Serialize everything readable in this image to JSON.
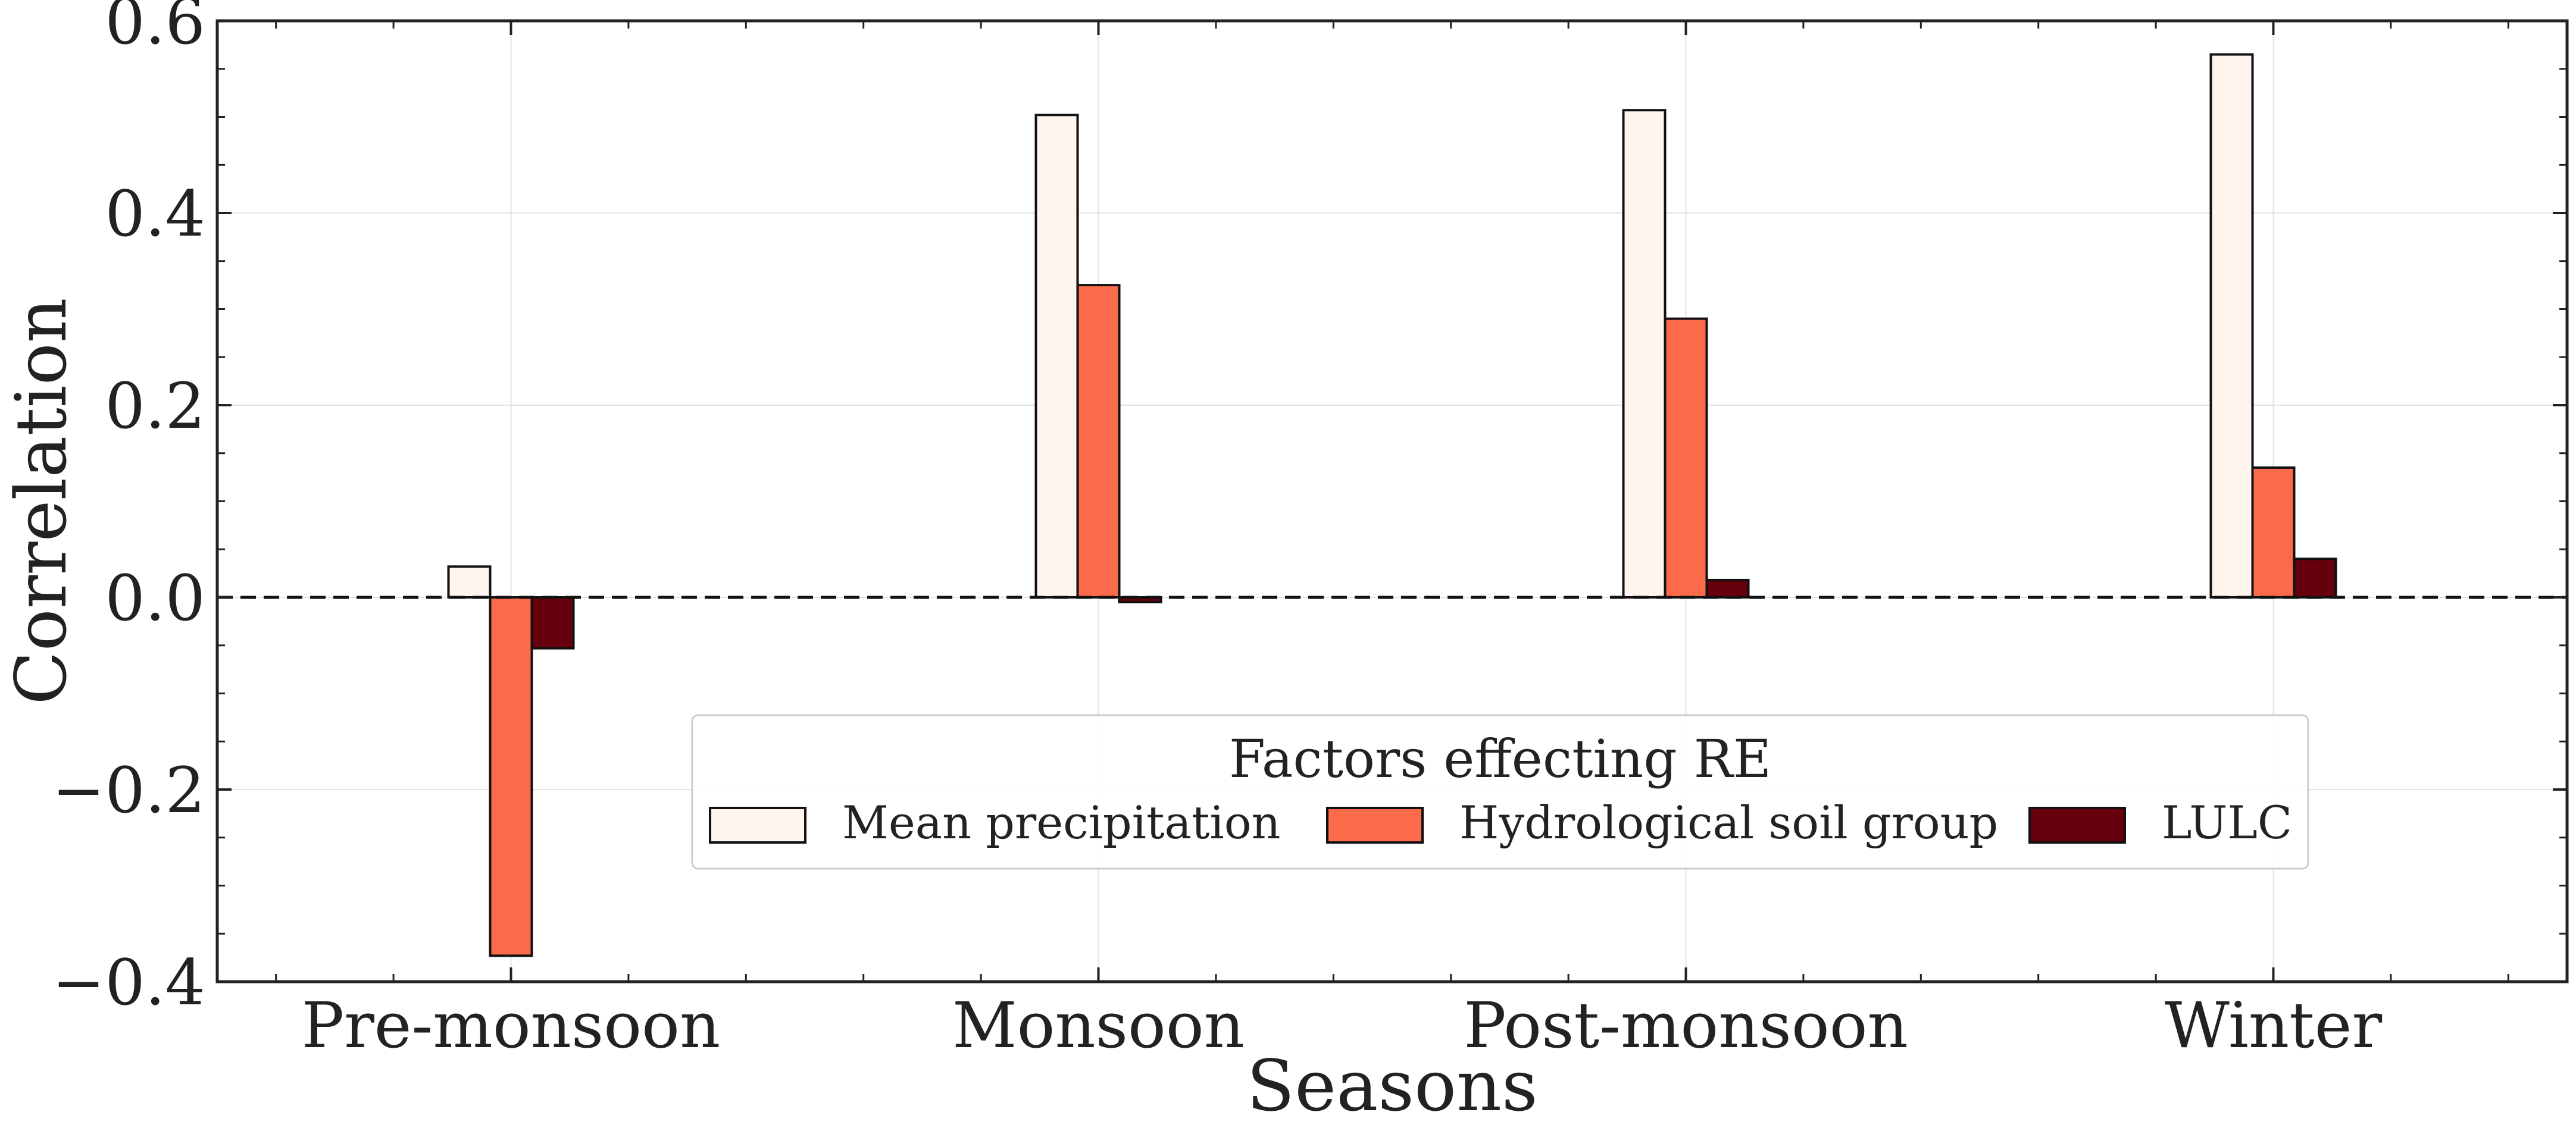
{
  "chart_data": {
    "type": "bar",
    "xlabel": "Seasons",
    "ylabel": "Correlation",
    "categories": [
      "Pre-monsoon",
      "Monsoon",
      "Post-monsoon",
      "Winter"
    ],
    "series": [
      {
        "name": "Mean precipitation",
        "color": "#fff4ee",
        "values": [
          0.032,
          0.502,
          0.507,
          0.565
        ]
      },
      {
        "name": "Hydrological soil group",
        "color": "#fb6a4a",
        "values": [
          -0.373,
          0.325,
          0.29,
          0.135
        ]
      },
      {
        "name": "LULC",
        "color": "#67000d",
        "values": [
          -0.053,
          -0.005,
          0.018,
          0.04
        ]
      }
    ],
    "ylim": [
      -0.4,
      0.6
    ],
    "yticks": [
      -0.4,
      -0.2,
      0.0,
      0.2,
      0.4,
      0.6
    ],
    "ytick_labels": [
      "−0.4",
      "−0.2",
      "0.0",
      "0.2",
      "0.4",
      "0.6"
    ],
    "grid": true,
    "zero_line": "dashed",
    "legend": {
      "title": "Factors effecting RE",
      "placement": "lower-center",
      "columns": 3
    }
  }
}
